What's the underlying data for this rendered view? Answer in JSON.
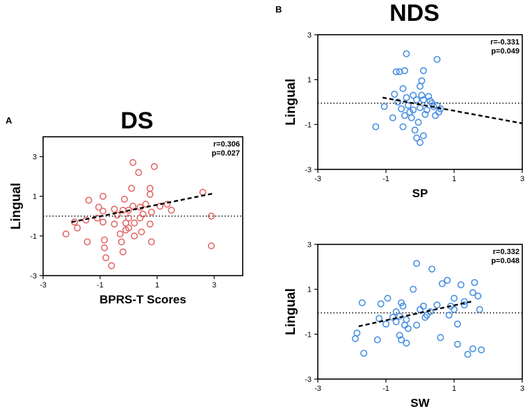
{
  "panels": [
    {
      "letter": "A",
      "header": "DS",
      "chart_data": {
        "type": "scatter",
        "title": "",
        "xlabel": "BPRS-T Scores",
        "ylabel": "Lingual",
        "xlim": [
          -3,
          4
        ],
        "ylim": [
          -3,
          4
        ],
        "xticks": [
          "-3",
          "-1",
          "1",
          "3"
        ],
        "yticks": [
          "3",
          "1",
          "-1",
          "-3"
        ],
        "stats": [
          "r=0.306",
          "p=0.027"
        ],
        "point_color": "#e46a6a",
        "fit": {
          "x1": -2,
          "y1": -0.3,
          "x2": 3,
          "y2": 1.15
        },
        "reference_y": 0,
        "points": [
          [
            -2.2,
            -0.9
          ],
          [
            -1.9,
            -0.3
          ],
          [
            -1.8,
            -0.6
          ],
          [
            -1.5,
            -0.2
          ],
          [
            -1.45,
            -1.3
          ],
          [
            -1.4,
            0.8
          ],
          [
            -1.1,
            -0.1
          ],
          [
            -1.05,
            0.45
          ],
          [
            -0.9,
            0.25
          ],
          [
            -0.9,
            -0.3
          ],
          [
            -0.9,
            1.0
          ],
          [
            -0.85,
            -1.2
          ],
          [
            -0.85,
            -1.6
          ],
          [
            -0.8,
            -2.1
          ],
          [
            -0.6,
            -2.5
          ],
          [
            -0.5,
            -0.4
          ],
          [
            -0.5,
            0.35
          ],
          [
            -0.4,
            0.05
          ],
          [
            -0.3,
            -0.9
          ],
          [
            -0.25,
            -1.3
          ],
          [
            -0.2,
            -1.8
          ],
          [
            -0.2,
            0.3
          ],
          [
            -0.15,
            0.85
          ],
          [
            -0.1,
            -0.35
          ],
          [
            -0.1,
            -0.7
          ],
          [
            0.0,
            -0.6
          ],
          [
            0.0,
            -0.1
          ],
          [
            0.0,
            0.3
          ],
          [
            0.1,
            1.4
          ],
          [
            0.15,
            2.7
          ],
          [
            0.15,
            0.5
          ],
          [
            0.2,
            -1.0
          ],
          [
            0.2,
            -0.35
          ],
          [
            0.35,
            2.2
          ],
          [
            0.4,
            -0.1
          ],
          [
            0.4,
            0.45
          ],
          [
            0.45,
            -0.8
          ],
          [
            0.5,
            0.1
          ],
          [
            0.6,
            0.6
          ],
          [
            0.75,
            1.4
          ],
          [
            0.75,
            1.1
          ],
          [
            0.75,
            -0.4
          ],
          [
            0.8,
            -1.3
          ],
          [
            0.8,
            0.2
          ],
          [
            0.9,
            2.5
          ],
          [
            1.1,
            0.5
          ],
          [
            1.35,
            0.6
          ],
          [
            1.5,
            0.3
          ],
          [
            2.6,
            1.2
          ],
          [
            2.9,
            0.0
          ],
          [
            2.9,
            -1.5
          ]
        ]
      }
    },
    {
      "letter": "B",
      "header": "NDS",
      "chart_data": [
        {
          "type": "scatter",
          "title": "",
          "xlabel": "SP",
          "ylabel": "Lingual",
          "xlim": [
            -3,
            3
          ],
          "ylim": [
            -3,
            3
          ],
          "xticks": [
            "-3",
            "-1",
            "1",
            "3"
          ],
          "yticks": [
            "3",
            "1",
            "-1",
            "-3"
          ],
          "stats": [
            "r=-0.331",
            "p=0.049"
          ],
          "point_color": "#4a90e2",
          "fit": {
            "x1": -1.1,
            "y1": 0.2,
            "x2": 3,
            "y2": -0.95
          },
          "reference_y": -0.05,
          "points": [
            [
              -1.3,
              -1.1
            ],
            [
              -1.05,
              -0.2
            ],
            [
              -0.8,
              -0.7
            ],
            [
              -0.75,
              0.35
            ],
            [
              -0.7,
              1.35
            ],
            [
              -0.65,
              0.0
            ],
            [
              -0.6,
              1.35
            ],
            [
              -0.55,
              -0.3
            ],
            [
              -0.5,
              0.6
            ],
            [
              -0.5,
              -1.1
            ],
            [
              -0.45,
              1.4
            ],
            [
              -0.45,
              -0.6
            ],
            [
              -0.4,
              2.15
            ],
            [
              -0.4,
              0.2
            ],
            [
              -0.35,
              -0.15
            ],
            [
              -0.3,
              -0.45
            ],
            [
              -0.25,
              -0.7
            ],
            [
              -0.2,
              0.3
            ],
            [
              -0.2,
              -0.35
            ],
            [
              -0.15,
              -1.25
            ],
            [
              -0.1,
              -1.6
            ],
            [
              -0.1,
              0.1
            ],
            [
              -0.05,
              -0.9
            ],
            [
              0.0,
              -1.8
            ],
            [
              0.0,
              0.7
            ],
            [
              0.0,
              -0.25
            ],
            [
              0.05,
              0.3
            ],
            [
              0.05,
              0.95
            ],
            [
              0.1,
              1.4
            ],
            [
              0.1,
              -1.5
            ],
            [
              0.1,
              0.1
            ],
            [
              0.15,
              -0.55
            ],
            [
              0.2,
              -0.35
            ],
            [
              0.25,
              0.25
            ],
            [
              0.3,
              0.05
            ],
            [
              0.35,
              -0.05
            ],
            [
              0.4,
              -0.2
            ],
            [
              0.45,
              -0.6
            ],
            [
              0.5,
              1.9
            ],
            [
              0.5,
              -0.15
            ],
            [
              0.55,
              -0.45
            ],
            [
              0.6,
              -0.3
            ]
          ]
        },
        {
          "type": "scatter",
          "title": "",
          "xlabel": "SW",
          "ylabel": "Lingual",
          "xlim": [
            -3,
            3
          ],
          "ylim": [
            -3,
            3
          ],
          "xticks": [
            "-3",
            "-1",
            "1",
            "3"
          ],
          "yticks": [
            "3",
            "1",
            "-1",
            "-3"
          ],
          "stats": [
            "r=0.332",
            "p=0.048"
          ],
          "point_color": "#4a90e2",
          "fit": {
            "x1": -1.8,
            "y1": -0.65,
            "x2": 1.5,
            "y2": 0.45
          },
          "reference_y": -0.05,
          "points": [
            [
              -1.9,
              -1.2
            ],
            [
              -1.85,
              -0.95
            ],
            [
              -1.7,
              0.4
            ],
            [
              -1.65,
              -1.85
            ],
            [
              -1.25,
              -1.25
            ],
            [
              -1.2,
              -0.3
            ],
            [
              -1.15,
              0.35
            ],
            [
              -1.0,
              -0.55
            ],
            [
              -0.95,
              0.6
            ],
            [
              -0.8,
              -0.25
            ],
            [
              -0.7,
              0.0
            ],
            [
              -0.7,
              -0.45
            ],
            [
              -0.6,
              -1.05
            ],
            [
              -0.6,
              -0.2
            ],
            [
              -0.55,
              0.4
            ],
            [
              -0.55,
              -1.25
            ],
            [
              -0.5,
              0.25
            ],
            [
              -0.45,
              -0.6
            ],
            [
              -0.4,
              -1.4
            ],
            [
              -0.4,
              -0.35
            ],
            [
              -0.35,
              -0.75
            ],
            [
              -0.2,
              1.0
            ],
            [
              -0.1,
              2.15
            ],
            [
              -0.1,
              -0.6
            ],
            [
              0.0,
              0.1
            ],
            [
              0.1,
              0.25
            ],
            [
              0.15,
              -0.25
            ],
            [
              0.2,
              -0.15
            ],
            [
              0.3,
              0.0
            ],
            [
              0.35,
              1.9
            ],
            [
              0.5,
              0.3
            ],
            [
              0.6,
              -1.15
            ],
            [
              0.65,
              1.25
            ],
            [
              0.8,
              1.4
            ],
            [
              0.85,
              -0.15
            ],
            [
              0.9,
              0.25
            ],
            [
              1.0,
              0.6
            ],
            [
              1.0,
              0.1
            ],
            [
              1.1,
              -0.55
            ],
            [
              1.1,
              -1.45
            ],
            [
              1.2,
              1.2
            ],
            [
              1.3,
              0.45
            ],
            [
              1.3,
              0.3
            ],
            [
              1.4,
              -1.9
            ],
            [
              1.55,
              -1.65
            ],
            [
              1.55,
              0.85
            ],
            [
              1.6,
              1.3
            ],
            [
              1.7,
              0.7
            ],
            [
              1.75,
              0.1
            ],
            [
              1.8,
              -1.7
            ]
          ]
        }
      ]
    }
  ]
}
